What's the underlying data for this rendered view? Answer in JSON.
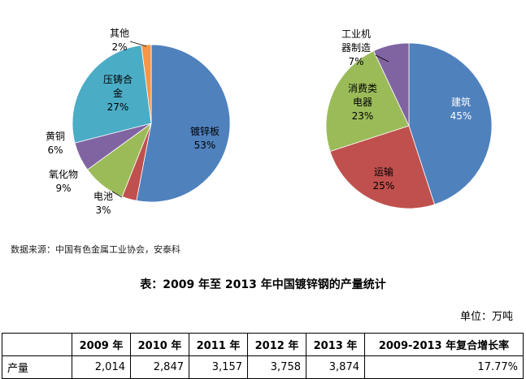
{
  "chart_data": [
    {
      "type": "pie",
      "title": "",
      "slices": [
        {
          "label": "镀锌板",
          "pct_label": "53%",
          "value": 53,
          "color": "#4f81bd"
        },
        {
          "label": "电池",
          "pct_label": "3%",
          "value": 3,
          "color": "#c0504d"
        },
        {
          "label": "氧化物",
          "pct_label": "9%",
          "value": 9,
          "color": "#9bbb59"
        },
        {
          "label": "黄铜",
          "pct_label": "6%",
          "value": 6,
          "color": "#8064a2"
        },
        {
          "label": "压铸合金",
          "pct_label": "27%",
          "value": 27,
          "color": "#4bacc6"
        },
        {
          "label": "其他",
          "pct_label": "2%",
          "value": 2,
          "color": "#f79646"
        }
      ]
    },
    {
      "type": "pie",
      "title": "",
      "slices": [
        {
          "label": "建筑",
          "pct_label": "45%",
          "value": 45,
          "color": "#4f81bd"
        },
        {
          "label": "运输",
          "pct_label": "25%",
          "value": 25,
          "color": "#c0504d"
        },
        {
          "label": "消费类电器",
          "pct_label": "23%",
          "value": 23,
          "color": "#9bbb59"
        },
        {
          "label": "工业机器制造",
          "pct_label": "7%",
          "value": 7,
          "color": "#8064a2"
        }
      ]
    }
  ],
  "source_note": "数据来源：中国有色金属工业协会，安泰科",
  "table": {
    "title": "表：2009 年至 2013 年中国镀锌钢的产量统计",
    "unit": "单位：万吨",
    "headers": [
      "",
      "2009 年",
      "2010 年",
      "2011 年",
      "2012 年",
      "2013 年",
      "2009-2013 年复合增长率"
    ],
    "rows": [
      {
        "label": "产量",
        "cells": [
          "2,014",
          "2,847",
          "3,157",
          "3,758",
          "3,874",
          "17.77%"
        ]
      }
    ]
  }
}
